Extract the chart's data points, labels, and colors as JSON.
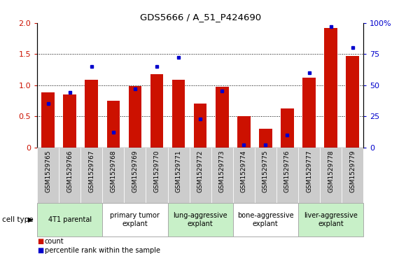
{
  "title": "GDS5666 / A_51_P424690",
  "samples": [
    "GSM1529765",
    "GSM1529766",
    "GSM1529767",
    "GSM1529768",
    "GSM1529769",
    "GSM1529770",
    "GSM1529771",
    "GSM1529772",
    "GSM1529773",
    "GSM1529774",
    "GSM1529775",
    "GSM1529776",
    "GSM1529777",
    "GSM1529778",
    "GSM1529779"
  ],
  "count_values": [
    0.88,
    0.85,
    1.08,
    0.75,
    0.98,
    1.18,
    1.08,
    0.7,
    0.97,
    0.5,
    0.3,
    0.62,
    1.12,
    1.92,
    1.47
  ],
  "percentile_values": [
    35,
    44,
    65,
    12,
    47,
    65,
    72,
    23,
    45,
    2,
    2,
    10,
    60,
    97,
    80
  ],
  "cell_types": [
    {
      "label": "4T1 parental",
      "start": 0,
      "end": 2,
      "color": "#c8f0c8"
    },
    {
      "label": "primary tumor\nexplant",
      "start": 3,
      "end": 5,
      "color": "#ffffff"
    },
    {
      "label": "lung-aggressive\nexplant",
      "start": 6,
      "end": 8,
      "color": "#c8f0c8"
    },
    {
      "label": "bone-aggressive\nexplant",
      "start": 9,
      "end": 11,
      "color": "#ffffff"
    },
    {
      "label": "liver-aggressive\nexplant",
      "start": 12,
      "end": 14,
      "color": "#c8f0c8"
    }
  ],
  "ylim_left": [
    0,
    2
  ],
  "ylim_right": [
    0,
    100
  ],
  "yticks_left": [
    0,
    0.5,
    1.0,
    1.5,
    2.0
  ],
  "yticks_right": [
    0,
    25,
    50,
    75,
    100
  ],
  "yticklabels_right": [
    "0",
    "25",
    "50",
    "75",
    "100%"
  ],
  "bar_color": "#cc1100",
  "dot_color": "#0000cc",
  "grid_color": "#000000",
  "bg_color": "#ffffff",
  "sample_bg_color": "#cccccc",
  "cell_border_color": "#aaaaaa",
  "legend_count_label": "count",
  "legend_percentile_label": "percentile rank within the sample",
  "cell_type_label": "cell type"
}
